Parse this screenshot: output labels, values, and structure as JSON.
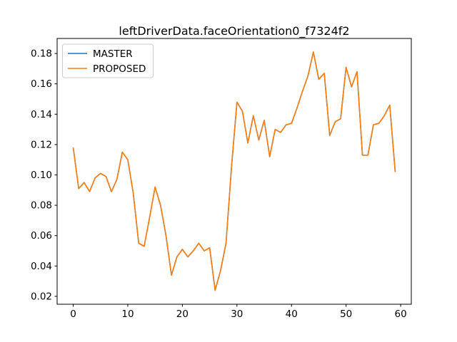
{
  "chart_data": {
    "type": "line",
    "title": "leftDriverData.faceOrientation0_f7324f2",
    "x_start": 0,
    "x_step": 1,
    "xlim": [
      -2.95,
      61.95
    ],
    "ylim": [
      0.0148,
      0.1899
    ],
    "xticks": [
      0,
      10,
      20,
      30,
      40,
      50,
      60
    ],
    "yticks": [
      0.02,
      0.04,
      0.06,
      0.08,
      0.1,
      0.12,
      0.14,
      0.16,
      0.18
    ],
    "grid": false,
    "legend_position": "upper left",
    "legend_border_color": "#cccccc",
    "background_color": "#ffffff",
    "series": [
      {
        "name": "MASTER",
        "color": "#1f77b4",
        "values": [
          0.118,
          0.091,
          0.095,
          0.089,
          0.098,
          0.101,
          0.099,
          0.089,
          0.097,
          0.115,
          0.11,
          0.088,
          0.055,
          0.053,
          0.072,
          0.092,
          0.08,
          0.06,
          0.034,
          0.046,
          0.051,
          0.046,
          0.05,
          0.055,
          0.05,
          0.052,
          0.024,
          0.037,
          0.055,
          0.105,
          0.148,
          0.142,
          0.121,
          0.139,
          0.123,
          0.136,
          0.112,
          0.13,
          0.128,
          0.133,
          0.134,
          0.144,
          0.155,
          0.165,
          0.181,
          0.163,
          0.167,
          0.126,
          0.135,
          0.137,
          0.171,
          0.158,
          0.168,
          0.113,
          0.113,
          0.133,
          0.134,
          0.139,
          0.146,
          0.102
        ]
      },
      {
        "name": "PROPOSED",
        "color": "#ff7f0e",
        "values": [
          0.118,
          0.091,
          0.095,
          0.089,
          0.098,
          0.101,
          0.099,
          0.089,
          0.097,
          0.115,
          0.11,
          0.088,
          0.055,
          0.053,
          0.072,
          0.092,
          0.08,
          0.06,
          0.034,
          0.046,
          0.051,
          0.046,
          0.05,
          0.055,
          0.05,
          0.052,
          0.024,
          0.037,
          0.055,
          0.105,
          0.148,
          0.142,
          0.121,
          0.139,
          0.123,
          0.136,
          0.112,
          0.13,
          0.128,
          0.133,
          0.134,
          0.144,
          0.155,
          0.165,
          0.181,
          0.163,
          0.167,
          0.126,
          0.135,
          0.137,
          0.171,
          0.158,
          0.168,
          0.113,
          0.113,
          0.133,
          0.134,
          0.139,
          0.146,
          0.102
        ]
      }
    ]
  }
}
